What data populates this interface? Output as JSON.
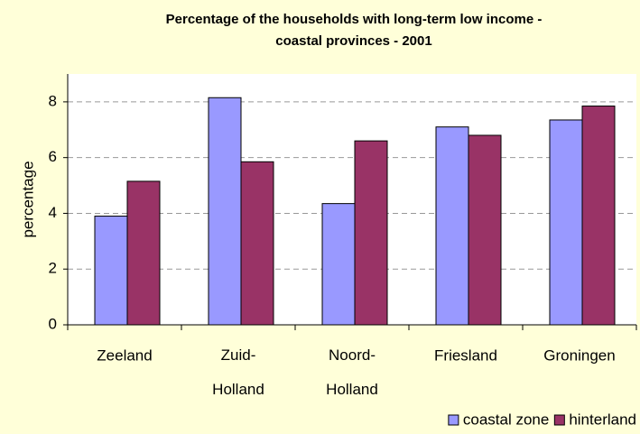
{
  "chart_data": {
    "type": "bar",
    "title": [
      "Percentage of the households with long-term low income -",
      "coastal provinces - 2001"
    ],
    "y_label": "percentage",
    "categories": [
      "Zeeland",
      "Zuid-Holland",
      "Noord-Holland",
      "Friesland",
      "Groningen"
    ],
    "series": [
      {
        "name": "coastal zone",
        "color": "#9999ff",
        "values": [
          3.9,
          8.15,
          4.35,
          7.1,
          7.35
        ]
      },
      {
        "name": "hinterland",
        "color": "#993366",
        "values": [
          5.15,
          5.85,
          6.6,
          6.8,
          7.85
        ]
      }
    ],
    "ylim": [
      0,
      9
    ],
    "yticks": [
      0,
      2,
      4,
      6,
      8
    ],
    "grid": true,
    "legend": "bottom-right"
  }
}
